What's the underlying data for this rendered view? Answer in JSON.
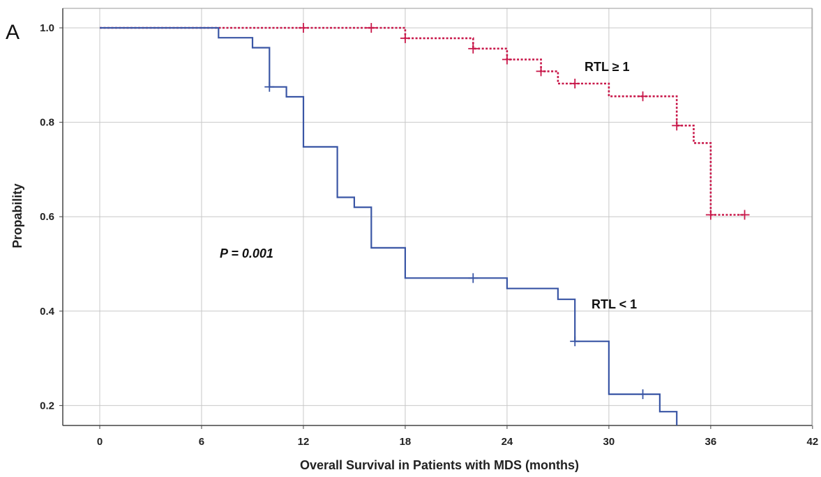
{
  "panel_label": "A",
  "chart_data": {
    "type": "line",
    "subtype": "kaplan-meier step",
    "xlabel": "Overall Survival in Patients with MDS (months)",
    "ylabel": "Propability",
    "xlim": [
      0,
      42
    ],
    "ylim": [
      0.16,
      1.04
    ],
    "xticks": [
      0,
      6,
      12,
      18,
      24,
      30,
      36,
      42
    ],
    "yticks": [
      0.2,
      0.4,
      0.6,
      0.8,
      1.0
    ],
    "ytick_labels": [
      "0.2",
      "0.4",
      "0.6",
      "0.8",
      "1.0"
    ],
    "grid": true,
    "annotations": {
      "p_value": "P = 0.001",
      "high_label": "RTL ≥ 1",
      "low_label": "RTL <  1"
    },
    "series": [
      {
        "name": "RTL ≥ 1",
        "color": "#c8184a",
        "style": "dotted",
        "steps": [
          [
            0,
            1.0
          ],
          [
            18,
            0.978
          ],
          [
            22,
            0.956
          ],
          [
            24,
            0.933
          ],
          [
            26,
            0.908
          ],
          [
            27,
            0.882
          ],
          [
            30,
            0.855
          ],
          [
            34,
            0.793
          ],
          [
            35,
            0.756
          ],
          [
            36,
            0.604
          ],
          [
            38,
            0.604
          ]
        ],
        "censored": [
          [
            12,
            1.0
          ],
          [
            16,
            1.0
          ],
          [
            18,
            0.978
          ],
          [
            22,
            0.956
          ],
          [
            24,
            0.933
          ],
          [
            26,
            0.908
          ],
          [
            28,
            0.882
          ],
          [
            32,
            0.855
          ],
          [
            34,
            0.793
          ],
          [
            36,
            0.604
          ],
          [
            38,
            0.604
          ]
        ]
      },
      {
        "name": "RTL < 1",
        "color": "#3a56a5",
        "style": "solid",
        "steps": [
          [
            0,
            1.0
          ],
          [
            7,
            0.979
          ],
          [
            9,
            0.958
          ],
          [
            10,
            0.875
          ],
          [
            11,
            0.854
          ],
          [
            12,
            0.748
          ],
          [
            14,
            0.641
          ],
          [
            15,
            0.62
          ],
          [
            16,
            0.534
          ],
          [
            18,
            0.47
          ],
          [
            22,
            0.47
          ],
          [
            24,
            0.448
          ],
          [
            27,
            0.425
          ],
          [
            28,
            0.336
          ],
          [
            30,
            0.224
          ],
          [
            33,
            0.187
          ],
          [
            34,
            0.158
          ]
        ],
        "censored": [
          [
            10,
            0.875
          ],
          [
            22,
            0.47
          ],
          [
            28,
            0.336
          ],
          [
            32,
            0.224
          ]
        ]
      }
    ]
  }
}
